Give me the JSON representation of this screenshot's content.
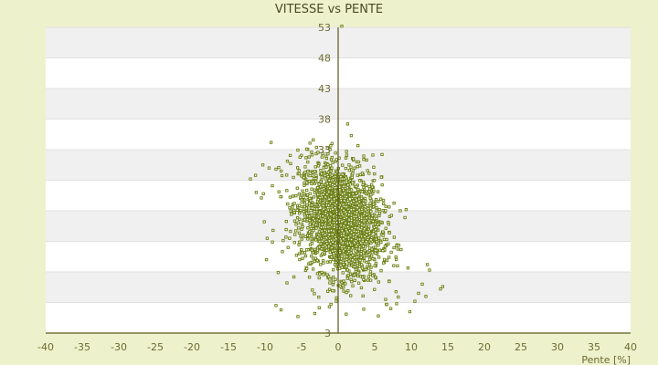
{
  "chart_data": {
    "type": "scatter",
    "title": "VITESSE vs PENTE",
    "xlabel": "Pente [%]",
    "ylabel": "",
    "xlim": [
      -40,
      40
    ],
    "ylim": [
      3,
      53
    ],
    "x_ticks": [
      -40,
      -35,
      -30,
      -25,
      -20,
      -15,
      -10,
      -5,
      0,
      5,
      10,
      15,
      20,
      25,
      30,
      35,
      40
    ],
    "y_tick_labels": [
      53,
      48,
      43,
      38,
      33,
      3
    ],
    "y_bands": [
      3,
      8,
      13,
      18,
      23,
      28,
      33,
      38,
      43,
      48,
      53
    ],
    "grid": true,
    "series": [
      {
        "color": "#6b7f12",
        "cloud": {
          "x_center": 0.3,
          "x_spread": 2.8,
          "y_center": 21.5,
          "y_spread": 4.5,
          "count": 2400
        },
        "points": [
          [
            0.5,
            53.2
          ],
          [
            1.3,
            37.2
          ],
          [
            1.8,
            35.3
          ],
          [
            -3.4,
            34.6
          ],
          [
            -4.3,
            33.1
          ],
          [
            6.0,
            32.2
          ],
          [
            3.5,
            31.4
          ],
          [
            3.9,
            31.3
          ],
          [
            -10.3,
            30.5
          ],
          [
            -8.5,
            29.8
          ],
          [
            -11.3,
            28.8
          ],
          [
            -12.0,
            28.2
          ],
          [
            -7.8,
            29.5
          ],
          [
            -9.0,
            27.1
          ],
          [
            -11.2,
            26.0
          ],
          [
            -10.5,
            25.1
          ],
          [
            9.3,
            23.2
          ],
          [
            8.5,
            23.0
          ],
          [
            -10.1,
            21.2
          ],
          [
            -8.9,
            19.8
          ],
          [
            -9.7,
            18.5
          ],
          [
            -9.8,
            15.0
          ],
          [
            12.2,
            14.2
          ],
          [
            12.5,
            13.3
          ],
          [
            14.3,
            10.6
          ],
          [
            14.0,
            10.2
          ],
          [
            11.5,
            11.0
          ],
          [
            11.0,
            9.5
          ],
          [
            12.0,
            9.0
          ],
          [
            10.5,
            8.2
          ],
          [
            -8.2,
            12.9
          ],
          [
            -7.0,
            11.2
          ],
          [
            -8.5,
            7.5
          ],
          [
            -7.8,
            6.8
          ],
          [
            -5.5,
            5.7
          ],
          [
            -3.2,
            6.2
          ],
          [
            -1.2,
            7.3
          ],
          [
            3.5,
            6.9
          ],
          [
            5.5,
            5.8
          ],
          [
            1.1,
            6.1
          ],
          [
            8.0,
            7.8
          ],
          [
            7.2,
            7.0
          ],
          [
            9.8,
            6.5
          ],
          [
            6.5,
            8.5
          ]
        ]
      }
    ]
  }
}
